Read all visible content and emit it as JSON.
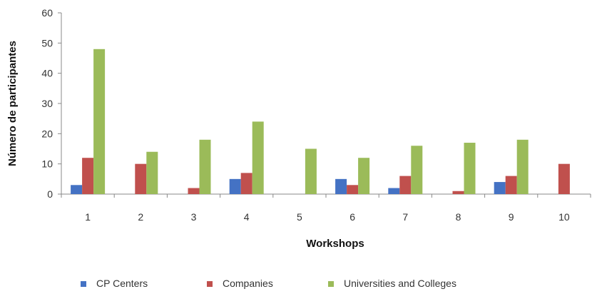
{
  "chart_data": {
    "type": "bar",
    "xlabel": "Workshops",
    "ylabel": "Número de participantes",
    "categories": [
      "1",
      "2",
      "3",
      "4",
      "5",
      "6",
      "7",
      "8",
      "9",
      "10"
    ],
    "ylim": [
      0,
      60
    ],
    "yticks": [
      0,
      10,
      20,
      30,
      40,
      50,
      60
    ],
    "grid": false,
    "legend_position": "bottom",
    "series": [
      {
        "name": "CP Centers",
        "color": "#4472c4",
        "values": [
          3,
          0,
          0,
          5,
          0,
          5,
          2,
          0,
          4,
          0
        ]
      },
      {
        "name": "Companies",
        "color": "#c0504d",
        "values": [
          12,
          10,
          2,
          7,
          0,
          3,
          6,
          1,
          6,
          10
        ]
      },
      {
        "name": "Universities and Colleges",
        "color": "#9bbb59",
        "values": [
          48,
          14,
          18,
          24,
          15,
          12,
          16,
          17,
          18,
          0
        ]
      }
    ]
  }
}
